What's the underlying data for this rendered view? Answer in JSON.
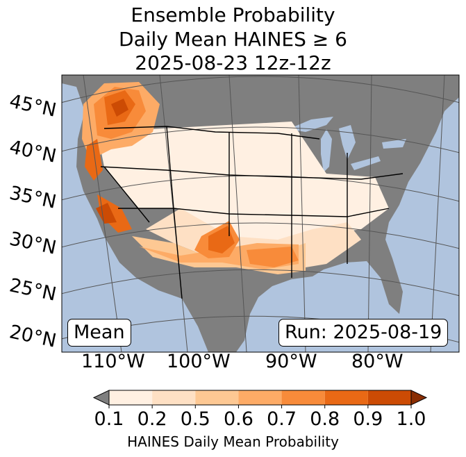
{
  "title": {
    "line1": "Ensemble Probability",
    "line2": "Daily Mean HAINES ≥ 6",
    "line3": "2025-08-23 12z-12z"
  },
  "map": {
    "latitude_labels": [
      "45°N",
      "40°N",
      "35°N",
      "30°N",
      "25°N",
      "20°N"
    ],
    "longitude_labels": [
      "110°W",
      "100°W",
      "90°W",
      "80°W"
    ],
    "mean_label": "Mean",
    "run_label": "Run: 2025-08-19",
    "colors": {
      "ocean": "#b0c4de",
      "land_below_threshold": "#7f7f7f",
      "boundaries": "#000000",
      "graticule": "#555555"
    }
  },
  "colorbar": {
    "label": "HAINES Daily Mean Probability",
    "tick_labels": [
      "0.1",
      "0.2",
      "0.5",
      "0.6",
      "0.7",
      "0.8",
      "0.9",
      "1.0"
    ],
    "levels": [
      0.1,
      0.2,
      0.5,
      0.6,
      0.7,
      0.8,
      0.9,
      1.0
    ],
    "under_color": "#7f7f7f",
    "over_color": "#8a2e03",
    "bin_colors": [
      "#fff0e2",
      "#fee0c4",
      "#fdc893",
      "#fdab66",
      "#f88b3a",
      "#e96915",
      "#cc4b04"
    ]
  }
}
